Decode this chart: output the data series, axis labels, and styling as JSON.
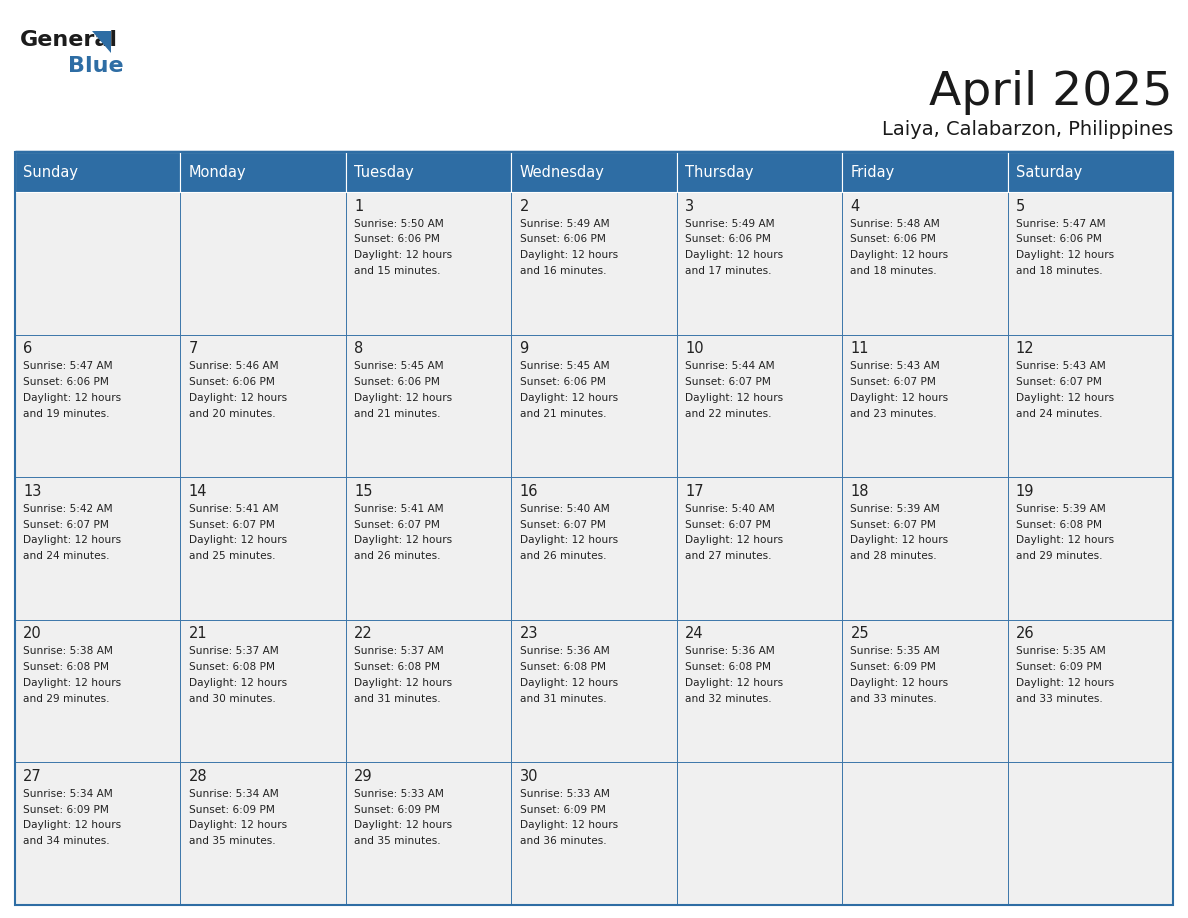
{
  "title": "April 2025",
  "subtitle": "Laiya, Calabarzon, Philippines",
  "header_bg": "#2E6DA4",
  "header_text_color": "#FFFFFF",
  "cell_bg": "#F0F0F0",
  "border_color": "#2E6DA4",
  "title_color": "#1a1a1a",
  "text_color": "#222222",
  "days_of_week": [
    "Sunday",
    "Monday",
    "Tuesday",
    "Wednesday",
    "Thursday",
    "Friday",
    "Saturday"
  ],
  "calendar_data": [
    [
      {
        "day": null,
        "sunrise": null,
        "sunset": null,
        "daylight_suffix": null
      },
      {
        "day": null,
        "sunrise": null,
        "sunset": null,
        "daylight_suffix": null
      },
      {
        "day": 1,
        "sunrise": "5:50 AM",
        "sunset": "6:06 PM",
        "daylight_suffix": "15 minutes."
      },
      {
        "day": 2,
        "sunrise": "5:49 AM",
        "sunset": "6:06 PM",
        "daylight_suffix": "16 minutes."
      },
      {
        "day": 3,
        "sunrise": "5:49 AM",
        "sunset": "6:06 PM",
        "daylight_suffix": "17 minutes."
      },
      {
        "day": 4,
        "sunrise": "5:48 AM",
        "sunset": "6:06 PM",
        "daylight_suffix": "18 minutes."
      },
      {
        "day": 5,
        "sunrise": "5:47 AM",
        "sunset": "6:06 PM",
        "daylight_suffix": "18 minutes."
      }
    ],
    [
      {
        "day": 6,
        "sunrise": "5:47 AM",
        "sunset": "6:06 PM",
        "daylight_suffix": "19 minutes."
      },
      {
        "day": 7,
        "sunrise": "5:46 AM",
        "sunset": "6:06 PM",
        "daylight_suffix": "20 minutes."
      },
      {
        "day": 8,
        "sunrise": "5:45 AM",
        "sunset": "6:06 PM",
        "daylight_suffix": "21 minutes."
      },
      {
        "day": 9,
        "sunrise": "5:45 AM",
        "sunset": "6:06 PM",
        "daylight_suffix": "21 minutes."
      },
      {
        "day": 10,
        "sunrise": "5:44 AM",
        "sunset": "6:07 PM",
        "daylight_suffix": "22 minutes."
      },
      {
        "day": 11,
        "sunrise": "5:43 AM",
        "sunset": "6:07 PM",
        "daylight_suffix": "23 minutes."
      },
      {
        "day": 12,
        "sunrise": "5:43 AM",
        "sunset": "6:07 PM",
        "daylight_suffix": "24 minutes."
      }
    ],
    [
      {
        "day": 13,
        "sunrise": "5:42 AM",
        "sunset": "6:07 PM",
        "daylight_suffix": "24 minutes."
      },
      {
        "day": 14,
        "sunrise": "5:41 AM",
        "sunset": "6:07 PM",
        "daylight_suffix": "25 minutes."
      },
      {
        "day": 15,
        "sunrise": "5:41 AM",
        "sunset": "6:07 PM",
        "daylight_suffix": "26 minutes."
      },
      {
        "day": 16,
        "sunrise": "5:40 AM",
        "sunset": "6:07 PM",
        "daylight_suffix": "26 minutes."
      },
      {
        "day": 17,
        "sunrise": "5:40 AM",
        "sunset": "6:07 PM",
        "daylight_suffix": "27 minutes."
      },
      {
        "day": 18,
        "sunrise": "5:39 AM",
        "sunset": "6:07 PM",
        "daylight_suffix": "28 minutes."
      },
      {
        "day": 19,
        "sunrise": "5:39 AM",
        "sunset": "6:08 PM",
        "daylight_suffix": "29 minutes."
      }
    ],
    [
      {
        "day": 20,
        "sunrise": "5:38 AM",
        "sunset": "6:08 PM",
        "daylight_suffix": "29 minutes."
      },
      {
        "day": 21,
        "sunrise": "5:37 AM",
        "sunset": "6:08 PM",
        "daylight_suffix": "30 minutes."
      },
      {
        "day": 22,
        "sunrise": "5:37 AM",
        "sunset": "6:08 PM",
        "daylight_suffix": "31 minutes."
      },
      {
        "day": 23,
        "sunrise": "5:36 AM",
        "sunset": "6:08 PM",
        "daylight_suffix": "31 minutes."
      },
      {
        "day": 24,
        "sunrise": "5:36 AM",
        "sunset": "6:08 PM",
        "daylight_suffix": "32 minutes."
      },
      {
        "day": 25,
        "sunrise": "5:35 AM",
        "sunset": "6:09 PM",
        "daylight_suffix": "33 minutes."
      },
      {
        "day": 26,
        "sunrise": "5:35 AM",
        "sunset": "6:09 PM",
        "daylight_suffix": "33 minutes."
      }
    ],
    [
      {
        "day": 27,
        "sunrise": "5:34 AM",
        "sunset": "6:09 PM",
        "daylight_suffix": "34 minutes."
      },
      {
        "day": 28,
        "sunrise": "5:34 AM",
        "sunset": "6:09 PM",
        "daylight_suffix": "35 minutes."
      },
      {
        "day": 29,
        "sunrise": "5:33 AM",
        "sunset": "6:09 PM",
        "daylight_suffix": "35 minutes."
      },
      {
        "day": 30,
        "sunrise": "5:33 AM",
        "sunset": "6:09 PM",
        "daylight_suffix": "36 minutes."
      },
      {
        "day": null,
        "sunrise": null,
        "sunset": null,
        "daylight_suffix": null
      },
      {
        "day": null,
        "sunrise": null,
        "sunset": null,
        "daylight_suffix": null
      },
      {
        "day": null,
        "sunrise": null,
        "sunset": null,
        "daylight_suffix": null
      }
    ]
  ]
}
